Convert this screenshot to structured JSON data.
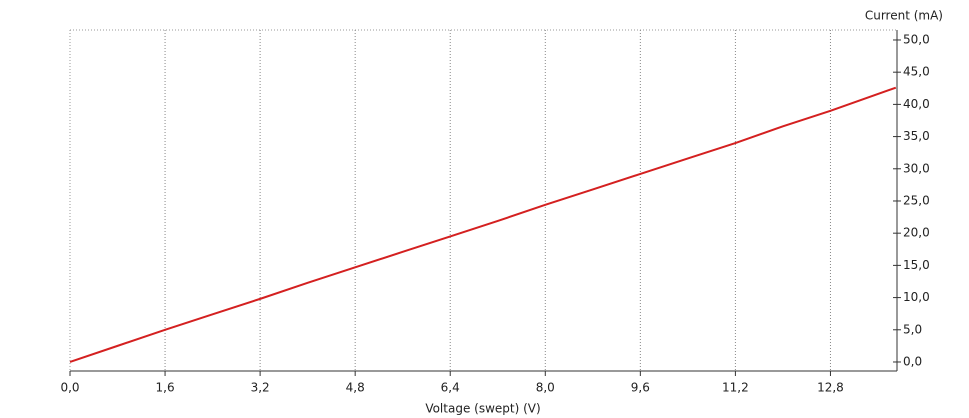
{
  "chart_data": {
    "type": "line",
    "x_label": "Voltage (swept) (V)",
    "y_label": "Current (mA)",
    "x": [
      0,
      0.8,
      1.6,
      2.4,
      3.2,
      4.0,
      4.8,
      5.6,
      6.4,
      7.2,
      8.0,
      8.8,
      9.6,
      10.4,
      11.2,
      12.0,
      12.8,
      13.9
    ],
    "series": [
      {
        "name": "Current",
        "color": "#d42020",
        "values": [
          0,
          2.5,
          5.0,
          7.4,
          9.8,
          12.3,
          14.7,
          17.1,
          19.5,
          21.9,
          24.4,
          26.8,
          29.2,
          31.6,
          34.0,
          36.6,
          39.0,
          42.6
        ]
      }
    ],
    "xlim": [
      0,
      13.92
    ],
    "ylim": [
      -1.4,
      51.55
    ],
    "xticks": [
      {
        "value": 0,
        "label": "0,0"
      },
      {
        "value": 1.6,
        "label": "1,6"
      },
      {
        "value": 3.2,
        "label": "3,2"
      },
      {
        "value": 4.8,
        "label": "4,8"
      },
      {
        "value": 6.4,
        "label": "6,4"
      },
      {
        "value": 8.0,
        "label": "8,0"
      },
      {
        "value": 9.6,
        "label": "9,6"
      },
      {
        "value": 11.2,
        "label": "11,2"
      },
      {
        "value": 12.8,
        "label": "12,8"
      }
    ],
    "yticks": [
      {
        "value": 0,
        "label": "0,0"
      },
      {
        "value": 5,
        "label": "5,0"
      },
      {
        "value": 10,
        "label": "10,0"
      },
      {
        "value": 15,
        "label": "15,0"
      },
      {
        "value": 20,
        "label": "20,0"
      },
      {
        "value": 25,
        "label": "25,0"
      },
      {
        "value": 30,
        "label": "30,0"
      },
      {
        "value": 35,
        "label": "35,0"
      },
      {
        "value": 40,
        "label": "40,0"
      },
      {
        "value": 45,
        "label": "45,0"
      },
      {
        "value": 50,
        "label": "50,0"
      }
    ],
    "grid": true
  }
}
